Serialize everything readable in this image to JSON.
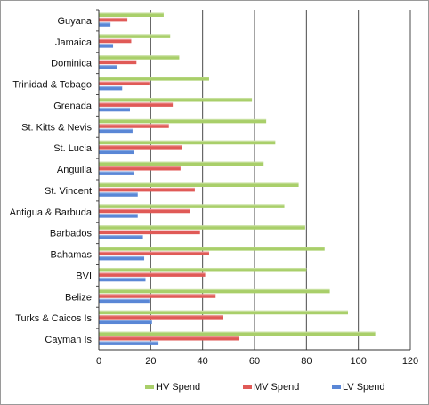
{
  "chart_data": {
    "type": "bar",
    "orientation": "horizontal",
    "categories": [
      "Guyana",
      "Jamaica",
      "Dominica",
      "Trinidad & Tobago",
      "Grenada",
      "St. Kitts & Nevis",
      "St. Lucia",
      "Anguilla",
      "St. Vincent",
      "Antigua & Barbuda",
      "Barbados",
      "Bahamas",
      "BVI",
      "Belize",
      "Turks & Caicos Is",
      "Cayman Is"
    ],
    "series": [
      {
        "name": "HV Spend",
        "color": "#a9cf6a",
        "values": [
          25,
          27.5,
          31,
          42.5,
          59,
          64.5,
          68,
          63.5,
          77,
          71.5,
          79.5,
          87,
          80,
          89,
          96,
          106.5
        ]
      },
      {
        "name": "MV Spend",
        "color": "#e05a57",
        "values": [
          11,
          12.5,
          14.5,
          19.5,
          28.5,
          27,
          32,
          31.5,
          37,
          35,
          39,
          42.5,
          41,
          45,
          48,
          54
        ]
      },
      {
        "name": "LV Spend",
        "color": "#5a87d6",
        "values": [
          4.5,
          5.5,
          7,
          9,
          12,
          13,
          13.5,
          13.5,
          15,
          15,
          17,
          17.5,
          18,
          19.5,
          20.5,
          23
        ]
      }
    ],
    "xlim": [
      0,
      120
    ],
    "xticks": [
      0,
      20,
      40,
      60,
      80,
      100,
      120
    ],
    "grid": "vertical",
    "legend": "bottom",
    "title": "",
    "xlabel": "",
    "ylabel": ""
  }
}
